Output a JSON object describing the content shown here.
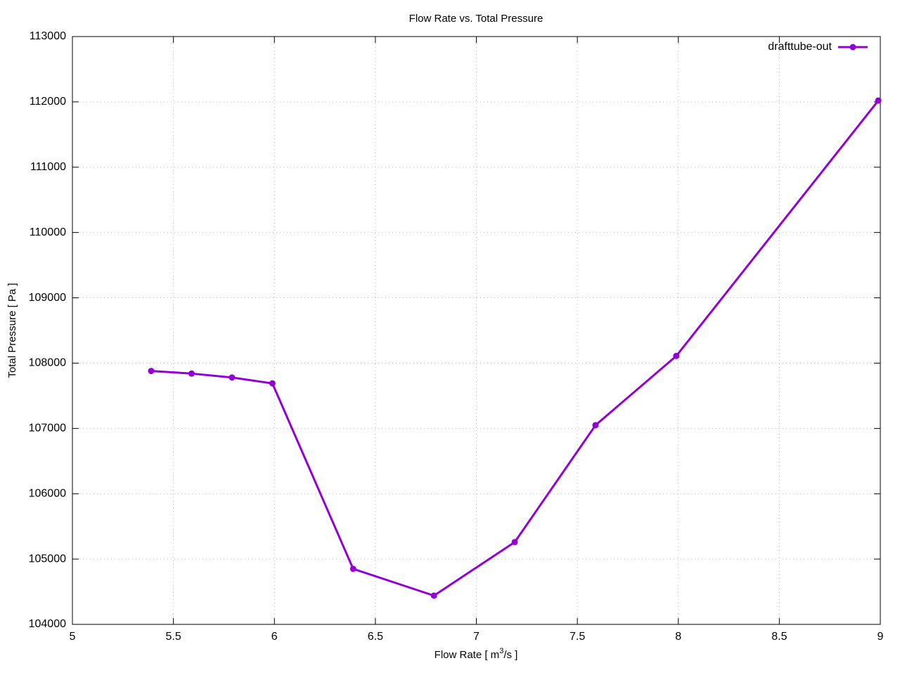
{
  "chart_data": {
    "type": "line",
    "title": "Flow Rate vs. Total Pressure",
    "xlabel": [
      "Flow Rate [ m",
      "3",
      "/s ]"
    ],
    "ylabel": "Total Pressure [ Pa ]",
    "xlim": [
      5,
      9
    ],
    "xticks": [
      5,
      5.5,
      6,
      6.5,
      7,
      7.5,
      8,
      8.5,
      9
    ],
    "ylim": [
      104000,
      113000
    ],
    "yticks": [
      104000,
      105000,
      106000,
      107000,
      108000,
      109000,
      110000,
      111000,
      112000,
      113000
    ],
    "grid": true,
    "legend": "top-right",
    "series": [
      {
        "name": "drafttube-out",
        "color": "#9400d3",
        "x": [
          5.39,
          5.59,
          5.79,
          5.99,
          6.39,
          6.79,
          7.19,
          7.59,
          7.99,
          8.99
        ],
        "values": [
          107880,
          107840,
          107780,
          107690,
          104850,
          104440,
          105260,
          107050,
          108110,
          112020
        ]
      }
    ]
  }
}
